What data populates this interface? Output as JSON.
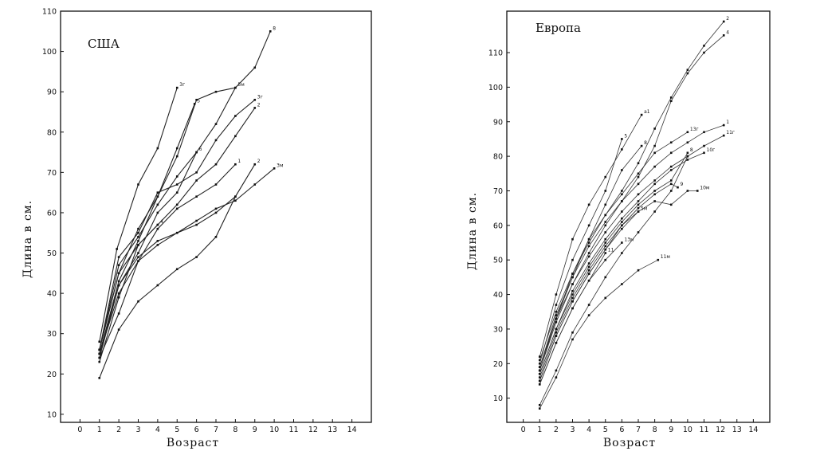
{
  "chart_data": [
    {
      "type": "line",
      "title": "США",
      "xlabel": "Возраст",
      "ylabel": "Длина в см.",
      "xlim": [
        -1,
        15
      ],
      "ylim": [
        8,
        110
      ],
      "xticks": [
        "0",
        "1",
        "2",
        "3",
        "4",
        "5",
        "6",
        "7",
        "8",
        "9",
        "10",
        "11",
        "12",
        "13",
        "14"
      ],
      "yticks": [
        "10",
        "20",
        "30",
        "40",
        "50",
        "60",
        "70",
        "80",
        "90",
        "100",
        "110"
      ],
      "series": [
        {
          "name": "8",
          "x": [
            1,
            2,
            3,
            4,
            5,
            6,
            7,
            8,
            9,
            9.8
          ],
          "y": [
            26,
            47,
            54,
            62,
            69,
            75,
            82,
            91,
            96,
            105
          ]
        },
        {
          "name": "5м",
          "x": [
            1,
            2,
            3,
            4,
            5,
            6,
            7,
            8
          ],
          "y": [
            26,
            45,
            56,
            64,
            74,
            88,
            90,
            91
          ]
        },
        {
          "name": "3г",
          "x": [
            1,
            1.9,
            3,
            4,
            5
          ],
          "y": [
            28,
            51,
            67,
            76,
            91
          ]
        },
        {
          "name": "3г",
          "x": [
            1,
            2,
            3,
            4,
            5,
            6,
            7,
            8,
            9
          ],
          "y": [
            26,
            49,
            55,
            65,
            67,
            70,
            78,
            84,
            88
          ]
        },
        {
          "name": "2",
          "x": [
            1,
            2,
            3,
            4,
            5,
            6,
            7,
            8,
            9
          ],
          "y": [
            26,
            45,
            52,
            57,
            62,
            68,
            72,
            79,
            86
          ]
        },
        {
          "name": "5",
          "x": [
            1,
            2,
            3,
            4,
            5,
            5.9
          ],
          "y": [
            25,
            43,
            53,
            64,
            76,
            87
          ]
        },
        {
          "name": "6",
          "x": [
            1,
            2,
            3,
            4,
            5,
            6
          ],
          "y": [
            25,
            42,
            50,
            60,
            65,
            75
          ]
        },
        {
          "name": "1",
          "x": [
            1,
            2,
            3,
            4,
            5,
            6,
            7,
            8
          ],
          "y": [
            25,
            40,
            48,
            56,
            61,
            64,
            67,
            72
          ]
        },
        {
          "name": "2",
          "x": [
            1,
            2,
            3,
            4,
            5,
            6,
            7,
            8,
            9
          ],
          "y": [
            24,
            35,
            48,
            52,
            55,
            57,
            60,
            64,
            72
          ]
        },
        {
          "name": "3м",
          "x": [
            1,
            2,
            3,
            4,
            5,
            6,
            7,
            8,
            9,
            10
          ],
          "y": [
            24,
            42,
            49,
            53,
            55,
            58,
            61,
            63,
            67,
            71
          ]
        },
        {
          "name": "4",
          "x": [
            1,
            2,
            3,
            4
          ],
          "y": [
            23,
            39,
            52,
            57
          ]
        },
        {
          "name": "",
          "x": [
            1,
            2,
            3,
            4,
            5,
            6,
            7,
            8
          ],
          "y": [
            19,
            31,
            38,
            42,
            46,
            49,
            54,
            64
          ]
        }
      ]
    },
    {
      "type": "line",
      "title": "Европа",
      "xlabel": "Возраст",
      "ylabel": "Длина в см.",
      "xlim": [
        -1,
        15
      ],
      "ylim": [
        3,
        122
      ],
      "xticks": [
        "0",
        "1",
        "2",
        "3",
        "4",
        "5",
        "6",
        "7",
        "8",
        "9",
        "10",
        "11",
        "12",
        "13",
        "14"
      ],
      "yticks": [
        "10",
        "20",
        "30",
        "40",
        "50",
        "60",
        "70",
        "80",
        "90",
        "100",
        "110"
      ],
      "series": [
        {
          "name": "2",
          "x": [
            1,
            2,
            3,
            4,
            5,
            6,
            7,
            8,
            9,
            10,
            11,
            12.2
          ],
          "y": [
            21,
            35,
            46,
            56,
            63,
            70,
            78,
            88,
            97,
            105,
            112,
            119
          ]
        },
        {
          "name": "4",
          "x": [
            1,
            2,
            3,
            4,
            5,
            6,
            7,
            8,
            9,
            10,
            11,
            12.2
          ],
          "y": [
            19,
            33,
            43,
            52,
            60,
            67,
            74,
            83,
            96,
            104,
            110,
            115
          ]
        },
        {
          "name": "a1",
          "x": [
            1,
            2,
            3,
            4,
            5,
            6,
            7.2
          ],
          "y": [
            22,
            40,
            56,
            66,
            74,
            82,
            92
          ]
        },
        {
          "name": "5",
          "x": [
            1,
            2,
            3,
            4,
            5,
            6
          ],
          "y": [
            20,
            37,
            50,
            60,
            70,
            85
          ]
        },
        {
          "name": "13г",
          "x": [
            1,
            2,
            3,
            4,
            5,
            6,
            7,
            8,
            9,
            10
          ],
          "y": [
            18,
            33,
            46,
            55,
            63,
            69,
            75,
            81,
            84,
            87
          ]
        },
        {
          "name": "1",
          "x": [
            1,
            2,
            3,
            4,
            5,
            6,
            7,
            8,
            9,
            10,
            11,
            12.2
          ],
          "y": [
            19,
            34,
            45,
            54,
            61,
            67,
            72,
            77,
            81,
            84,
            87,
            89
          ]
        },
        {
          "name": "11г",
          "x": [
            1,
            2,
            3,
            4,
            5,
            6,
            7,
            8,
            9,
            10,
            11,
            12.2
          ],
          "y": [
            18,
            32,
            43,
            51,
            58,
            64,
            69,
            73,
            77,
            80,
            83,
            86
          ]
        },
        {
          "name": "8",
          "x": [
            1,
            2,
            3,
            4,
            5,
            6,
            7.2
          ],
          "y": [
            18,
            33,
            45,
            56,
            66,
            76,
            83
          ]
        },
        {
          "name": "10г",
          "x": [
            1,
            2,
            3,
            4,
            5,
            6,
            7,
            8,
            9,
            10,
            11
          ],
          "y": [
            17,
            30,
            41,
            49,
            56,
            62,
            67,
            72,
            76,
            79,
            81
          ]
        },
        {
          "name": "8",
          "x": [
            1,
            2,
            3,
            4,
            5,
            6,
            7,
            8,
            9,
            10
          ],
          "y": [
            17,
            30,
            40,
            48,
            55,
            61,
            66,
            70,
            73,
            81
          ]
        },
        {
          "name": "10м",
          "x": [
            1,
            2,
            3,
            4,
            5,
            6,
            7,
            8,
            9,
            10,
            10.6
          ],
          "y": [
            15,
            28,
            38,
            46,
            53,
            59,
            64,
            67,
            66,
            70,
            70
          ]
        },
        {
          "name": "9",
          "x": [
            1,
            2,
            3,
            4,
            5,
            6,
            7,
            8,
            9,
            9.4
          ],
          "y": [
            16,
            29,
            39,
            47,
            54,
            60,
            65,
            69,
            72,
            71
          ]
        },
        {
          "name": "5м",
          "x": [
            1,
            2,
            3,
            4,
            5,
            6,
            7
          ],
          "y": [
            15,
            28,
            38,
            46,
            53,
            60,
            64
          ]
        },
        {
          "name": "13м",
          "x": [
            1,
            2,
            3,
            4,
            5,
            6
          ],
          "y": [
            14,
            26,
            36,
            44,
            50,
            55
          ]
        },
        {
          "name": "11",
          "x": [
            1,
            2,
            3,
            4,
            5
          ],
          "y": [
            14,
            26,
            36,
            44,
            52
          ]
        },
        {
          "name": "11м",
          "x": [
            1,
            2,
            3,
            4,
            5,
            6,
            7,
            8.2
          ],
          "y": [
            7,
            16,
            27,
            34,
            39,
            43,
            47,
            50
          ]
        },
        {
          "name": "",
          "x": [
            1,
            2,
            3,
            4,
            5,
            6,
            7,
            8,
            9,
            10
          ],
          "y": [
            8,
            18,
            29,
            37,
            45,
            52,
            58,
            64,
            70,
            80
          ]
        }
      ]
    }
  ]
}
